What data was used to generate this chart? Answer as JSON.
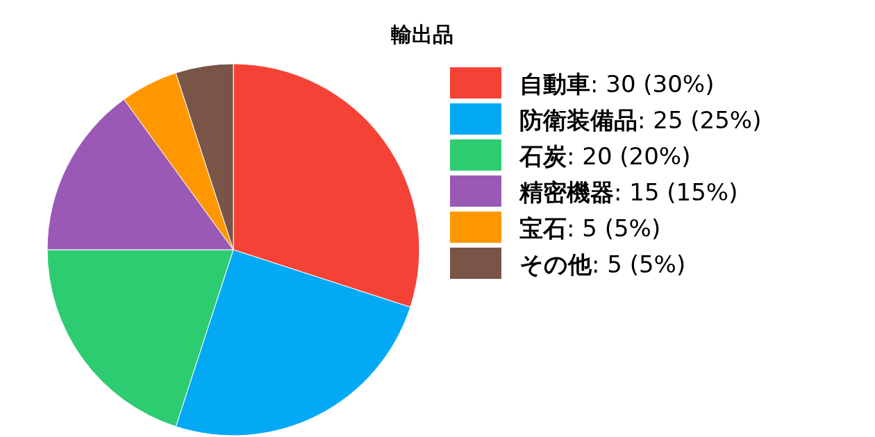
{
  "chart_data": {
    "type": "pie",
    "title": "輸出品",
    "categories": [
      "自動車",
      "防衛装備品",
      "石炭",
      "精密機器",
      "宝石",
      "その他"
    ],
    "values": [
      30,
      25,
      20,
      15,
      5,
      5
    ],
    "value_labels": [
      ": 30 (30%)",
      ": 25 (25%)",
      ": 20 (20%)",
      ": 15 (15%)",
      ": 5 (5%)",
      ": 5 (5%)"
    ],
    "colors": [
      "#f44336",
      "#03a9f4",
      "#2ecc71",
      "#9b59b6",
      "#ff9800",
      "#795548"
    ],
    "legend": "right"
  }
}
